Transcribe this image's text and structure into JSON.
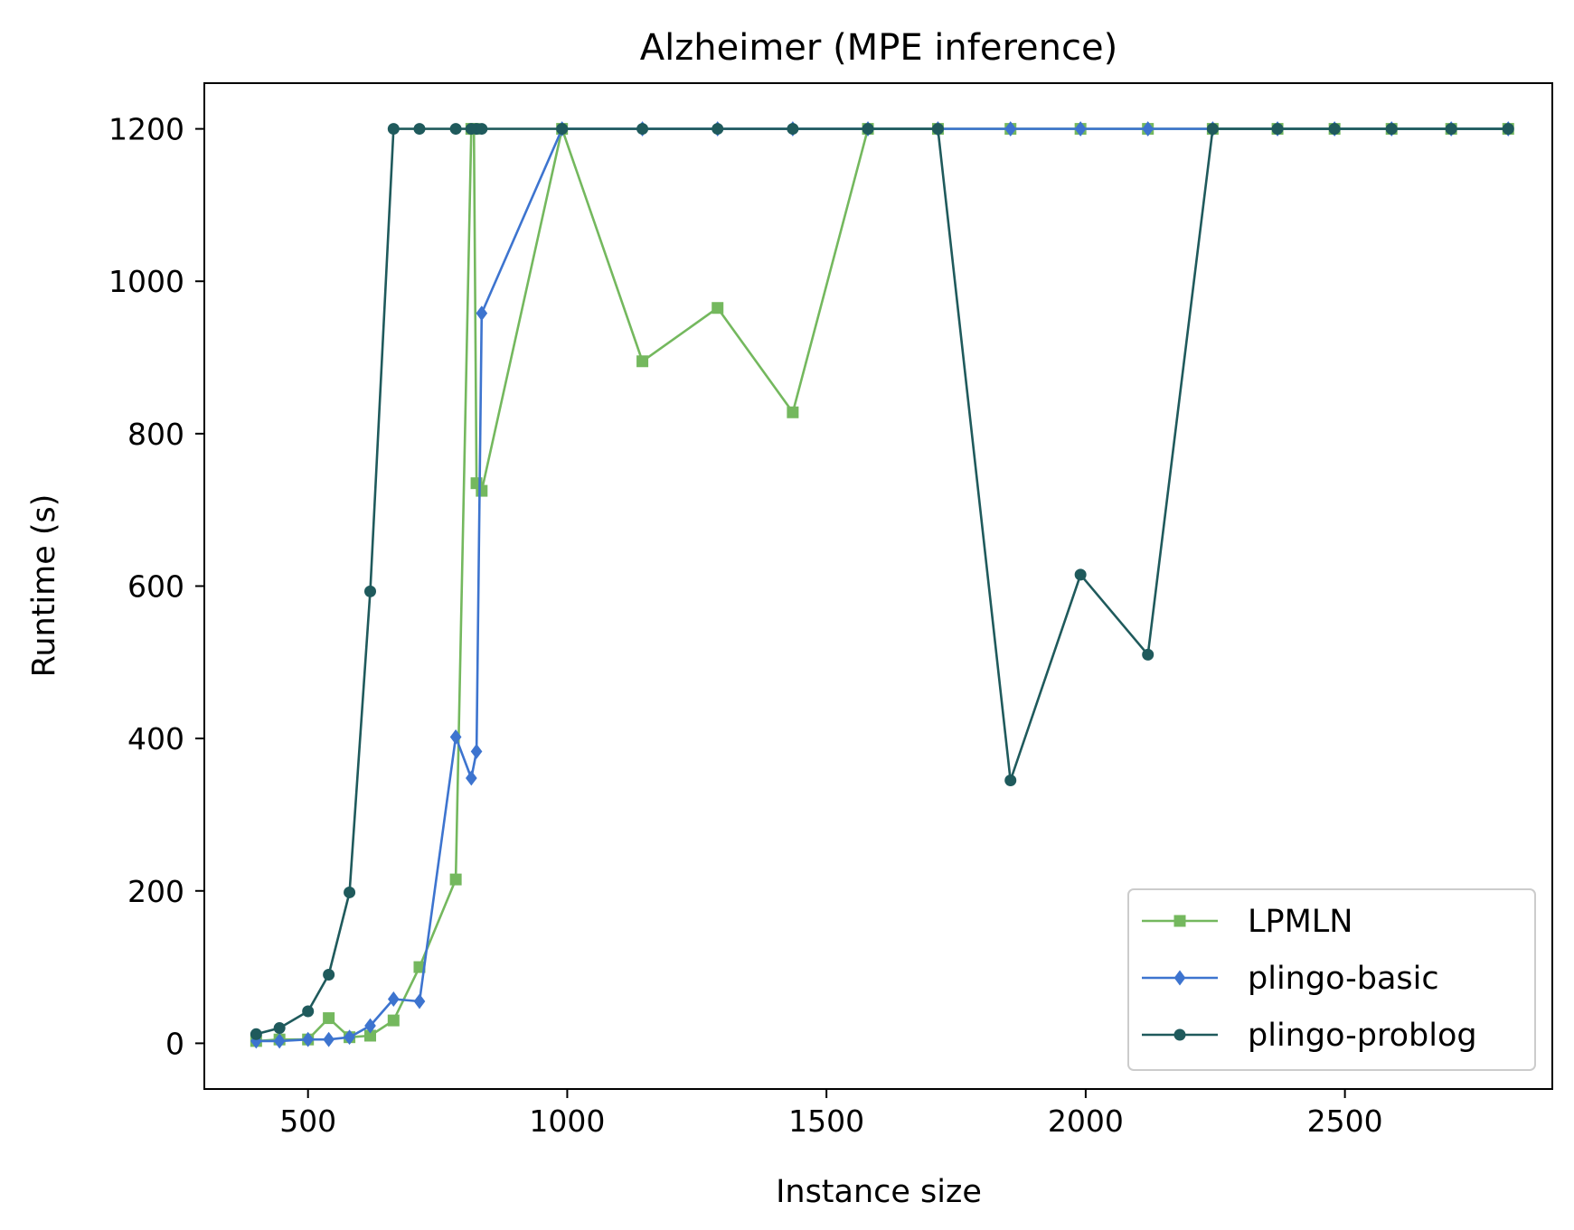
{
  "chart_data": {
    "type": "line",
    "title": "Alzheimer (MPE inference)",
    "xlabel": "Instance size",
    "ylabel": "Runtime (s)",
    "xlim": [
      300,
      2900
    ],
    "ylim": [
      -60,
      1260
    ],
    "xticks": [
      500,
      1000,
      1500,
      2000,
      2500
    ],
    "yticks": [
      0,
      200,
      400,
      600,
      800,
      1000,
      1200
    ],
    "grid": false,
    "legend_position": "lower-right",
    "series": [
      {
        "name": "LPMLN",
        "color": "#74b85e",
        "marker": "square",
        "points": [
          [
            400,
            3
          ],
          [
            445,
            5
          ],
          [
            500,
            5
          ],
          [
            540,
            33
          ],
          [
            580,
            8
          ],
          [
            620,
            10
          ],
          [
            665,
            30
          ],
          [
            715,
            100
          ],
          [
            785,
            215
          ],
          [
            815,
            1200
          ],
          [
            820,
            1200
          ],
          [
            825,
            735
          ],
          [
            835,
            725
          ],
          [
            990,
            1200
          ],
          [
            1145,
            895
          ],
          [
            1290,
            965
          ],
          [
            1435,
            828
          ],
          [
            1580,
            1200
          ],
          [
            1715,
            1200
          ],
          [
            1855,
            1200
          ],
          [
            1990,
            1200
          ],
          [
            2120,
            1200
          ],
          [
            2245,
            1200
          ],
          [
            2370,
            1200
          ],
          [
            2480,
            1200
          ],
          [
            2590,
            1200
          ],
          [
            2705,
            1200
          ],
          [
            2815,
            1200
          ]
        ]
      },
      {
        "name": "plingo-basic",
        "color": "#3d74cf",
        "marker": "diamond",
        "points": [
          [
            400,
            3
          ],
          [
            445,
            3
          ],
          [
            500,
            5
          ],
          [
            540,
            5
          ],
          [
            580,
            8
          ],
          [
            620,
            23
          ],
          [
            665,
            58
          ],
          [
            715,
            55
          ],
          [
            785,
            402
          ],
          [
            815,
            348
          ],
          [
            825,
            383
          ],
          [
            835,
            958
          ],
          [
            990,
            1200
          ],
          [
            1145,
            1200
          ],
          [
            1290,
            1200
          ],
          [
            1435,
            1200
          ],
          [
            1580,
            1200
          ],
          [
            1715,
            1200
          ],
          [
            1855,
            1200
          ],
          [
            1990,
            1200
          ],
          [
            2120,
            1200
          ],
          [
            2245,
            1200
          ],
          [
            2370,
            1200
          ],
          [
            2480,
            1200
          ],
          [
            2590,
            1200
          ],
          [
            2705,
            1200
          ],
          [
            2815,
            1200
          ]
        ]
      },
      {
        "name": "plingo-problog",
        "color": "#1f5a5c",
        "marker": "circle",
        "points": [
          [
            400,
            12
          ],
          [
            445,
            20
          ],
          [
            500,
            42
          ],
          [
            540,
            90
          ],
          [
            580,
            198
          ],
          [
            620,
            593
          ],
          [
            665,
            1200
          ],
          [
            715,
            1200
          ],
          [
            785,
            1200
          ],
          [
            815,
            1200
          ],
          [
            825,
            1200
          ],
          [
            835,
            1200
          ],
          [
            990,
            1200
          ],
          [
            1145,
            1200
          ],
          [
            1290,
            1200
          ],
          [
            1435,
            1200
          ],
          [
            1580,
            1200
          ],
          [
            1715,
            1200
          ],
          [
            1855,
            345
          ],
          [
            1990,
            615
          ],
          [
            2120,
            510
          ],
          [
            2245,
            1200
          ],
          [
            2370,
            1200
          ],
          [
            2480,
            1200
          ],
          [
            2590,
            1200
          ],
          [
            2705,
            1200
          ],
          [
            2815,
            1200
          ]
        ]
      }
    ]
  }
}
